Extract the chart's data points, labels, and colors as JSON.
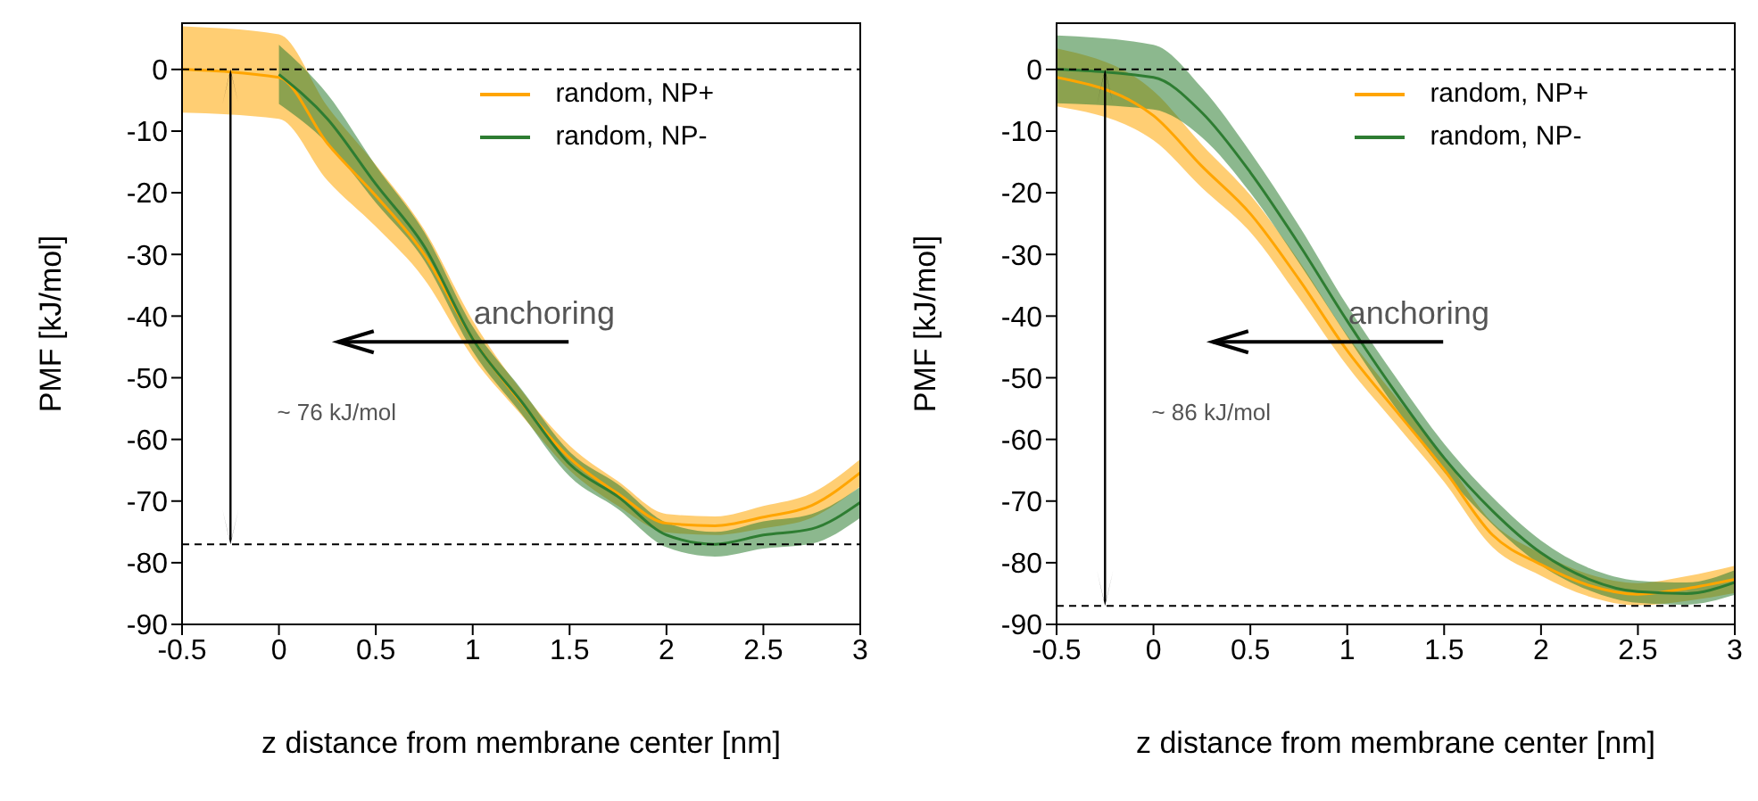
{
  "chart_data": [
    {
      "type": "line",
      "xlabel": "z distance from membrane center [nm]",
      "ylabel": "PMF [kJ/mol]",
      "xlim": [
        -0.5,
        3
      ],
      "xticks": [
        -0.5,
        0,
        0.5,
        1,
        1.5,
        2,
        2.5,
        3
      ],
      "ylim": [
        -90,
        7.5
      ],
      "yticks": [
        0,
        -10,
        -20,
        -30,
        -40,
        -50,
        -60,
        -70,
        -80,
        -90
      ],
      "legend": "top right",
      "annotations": [
        "anchoring",
        "~ 76 kJ/mol"
      ],
      "ref_lines": [
        {
          "axis": "y",
          "value": 0,
          "line_style": "dashed",
          "color": "#000000"
        },
        {
          "axis": "y",
          "value": -77,
          "line_style": "dashed",
          "color": "#000000"
        }
      ],
      "series": [
        {
          "name": "random, NP+",
          "color": "#ffa500",
          "x": [
            -0.5,
            0,
            0.25,
            0.5,
            0.75,
            1,
            1.25,
            1.5,
            1.75,
            2,
            2.25,
            2.5,
            2.75,
            3
          ],
          "values": [
            0,
            -1.3,
            -12,
            -20.5,
            -30,
            -43.7,
            -54,
            -63,
            -68.8,
            -73.6,
            -74,
            -72.6,
            -70.7,
            -65.4
          ],
          "lower": [
            -7,
            -8,
            -18,
            -25.5,
            -34,
            -46.7,
            -56,
            -65,
            -70.8,
            -75.1,
            -75.5,
            -74.4,
            -72.7,
            -67.6
          ],
          "upper": [
            7,
            5.7,
            -6,
            -15.5,
            -26,
            -40.7,
            -52,
            -61,
            -66.8,
            -72.1,
            -72.5,
            -70.8,
            -68.7,
            -63.2
          ]
        },
        {
          "name": "random, NP-",
          "color": "#2e7d32",
          "x": [
            0,
            0.25,
            0.5,
            0.75,
            1,
            1.25,
            1.5,
            1.75,
            2,
            2.25,
            2.5,
            2.75,
            3
          ],
          "values": [
            -0.8,
            -8,
            -18.6,
            -28.7,
            -43.7,
            -53.8,
            -64,
            -69.3,
            -75.5,
            -77,
            -75.5,
            -74.5,
            -70.2
          ],
          "lower": [
            -5.6,
            -12,
            -21.6,
            -31,
            -45.7,
            -55.8,
            -66,
            -71.3,
            -77.5,
            -79,
            -77.7,
            -76.9,
            -72.7
          ],
          "upper": [
            4,
            -4,
            -15.6,
            -26.4,
            -41.7,
            -51.8,
            -62,
            -67.3,
            -73.5,
            -75,
            -73.3,
            -72.1,
            -67.7
          ]
        }
      ]
    },
    {
      "type": "line",
      "xlabel": "z distance from membrane center [nm]",
      "ylabel": "PMF [kJ/mol]",
      "xlim": [
        -0.5,
        3
      ],
      "xticks": [
        -0.5,
        0,
        0.5,
        1,
        1.5,
        2,
        2.5,
        3
      ],
      "ylim": [
        -90,
        7.5
      ],
      "yticks": [
        0,
        -10,
        -20,
        -30,
        -40,
        -50,
        -60,
        -70,
        -80,
        -90
      ],
      "legend": "top right",
      "annotations": [
        "anchoring",
        "~ 86 kJ/mol"
      ],
      "ref_lines": [
        {
          "axis": "y",
          "value": 0,
          "line_style": "dashed",
          "color": "#000000"
        },
        {
          "axis": "y",
          "value": -87,
          "line_style": "dashed",
          "color": "#000000"
        }
      ],
      "series": [
        {
          "name": "random, NP+",
          "color": "#ffa500",
          "x": [
            -0.5,
            0,
            0.25,
            0.5,
            0.75,
            1,
            1.25,
            1.5,
            1.75,
            2,
            2.25,
            2.5,
            2.75,
            3
          ],
          "values": [
            -1.3,
            -7.5,
            -15.7,
            -23.4,
            -34,
            -45.6,
            -55.3,
            -64.9,
            -75.5,
            -80.3,
            -83.7,
            -85.1,
            -84.2,
            -82.7
          ],
          "lower": [
            -6,
            -11.5,
            -19.2,
            -26.4,
            -37,
            -48.1,
            -57.5,
            -66.9,
            -77.5,
            -82.1,
            -85.5,
            -86.9,
            -86.2,
            -84.9
          ],
          "upper": [
            3.4,
            -3.5,
            -12.2,
            -20.4,
            -31,
            -43.1,
            -53.1,
            -62.9,
            -73.5,
            -78.5,
            -81.9,
            -83.3,
            -82.2,
            -80.5
          ]
        },
        {
          "name": "random, NP-",
          "color": "#2e7d32",
          "x": [
            -0.5,
            0,
            0.25,
            0.5,
            0.75,
            1,
            1.25,
            1.5,
            1.75,
            2,
            2.25,
            2.5,
            2.75,
            3
          ],
          "values": [
            0,
            -1.3,
            -7,
            -16.7,
            -28.3,
            -40.8,
            -52.4,
            -63,
            -71.6,
            -78.4,
            -82.7,
            -84.7,
            -85,
            -83.2
          ],
          "lower": [
            -5.5,
            -6.5,
            -11,
            -20,
            -31.3,
            -43.3,
            -54.9,
            -65.3,
            -73.8,
            -80.4,
            -84.5,
            -86.5,
            -86.8,
            -85.2
          ],
          "upper": [
            5.5,
            4,
            -3,
            -13.4,
            -25.3,
            -38.3,
            -49.9,
            -60.7,
            -69.4,
            -76.4,
            -80.9,
            -82.9,
            -83.2,
            -81.2
          ]
        }
      ]
    }
  ]
}
